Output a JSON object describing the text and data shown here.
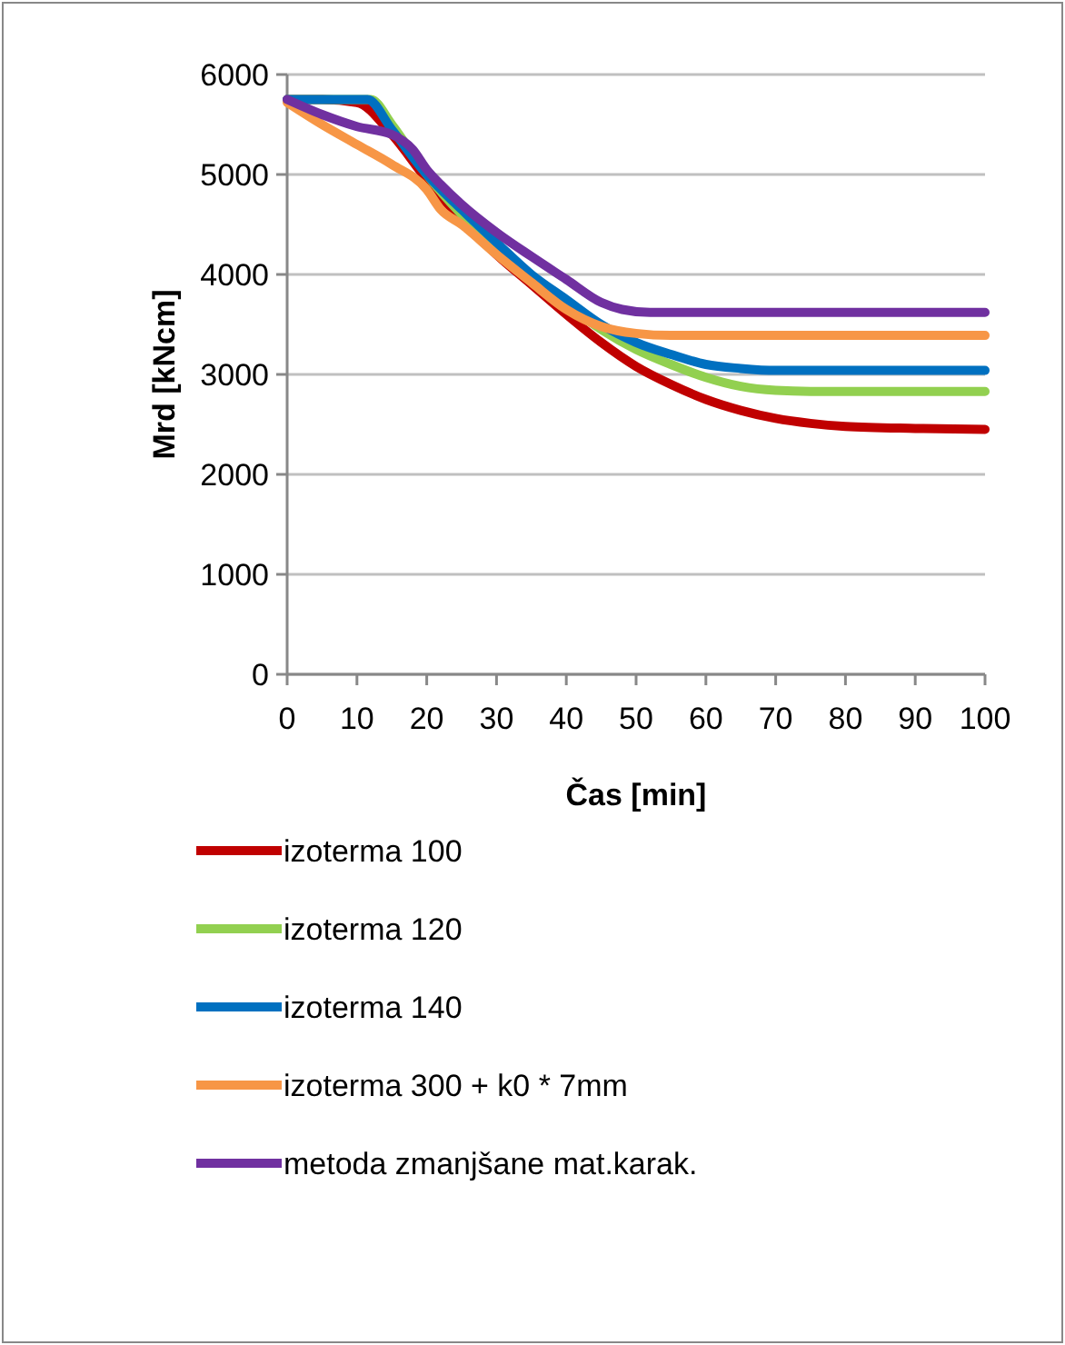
{
  "chart_data": {
    "type": "line",
    "xlabel": "Čas [min]",
    "ylabel": "Mrd [kNcm]",
    "xlim": [
      0,
      100
    ],
    "xticks": [
      0,
      10,
      20,
      30,
      40,
      50,
      60,
      70,
      80,
      90,
      100
    ],
    "ylim": [
      0,
      6000
    ],
    "yticks": [
      0,
      1000,
      2000,
      3000,
      4000,
      5000,
      6000
    ],
    "grid": "y",
    "legend": "bottom",
    "marker": "none",
    "line_style": "solid",
    "series": [
      {
        "name": "izoterma 100",
        "color": "#c00000",
        "x": [
          0,
          5,
          10,
          15,
          20,
          25,
          30,
          35,
          40,
          45,
          50,
          55,
          60,
          65,
          70,
          75,
          80,
          90,
          100
        ],
        "values": [
          5750,
          5750,
          5720,
          5400,
          4950,
          4550,
          4200,
          3900,
          3600,
          3320,
          3080,
          2900,
          2750,
          2640,
          2560,
          2510,
          2480,
          2460,
          2450
        ]
      },
      {
        "name": "izoterma 120",
        "color": "#92d050",
        "x": [
          0,
          10,
          12,
          15,
          20,
          25,
          30,
          35,
          40,
          45,
          50,
          55,
          60,
          65,
          70,
          75,
          100
        ],
        "values": [
          5750,
          5750,
          5750,
          5500,
          5000,
          4600,
          4280,
          3980,
          3700,
          3450,
          3250,
          3100,
          2970,
          2880,
          2840,
          2830,
          2830
        ]
      },
      {
        "name": "izoterma 140",
        "color": "#0070c0",
        "x": [
          0,
          11.5,
          15,
          20,
          25,
          30,
          35,
          40,
          45,
          50,
          55,
          60,
          65,
          70,
          100
        ],
        "values": [
          5750,
          5750,
          5450,
          5000,
          4650,
          4320,
          4000,
          3750,
          3500,
          3320,
          3200,
          3100,
          3060,
          3040,
          3040
        ]
      },
      {
        "name": "izoterma 300 + k0 * 7mm",
        "color": "#f79646",
        "x": [
          0,
          5,
          10,
          15,
          20,
          22,
          25,
          30,
          35,
          40,
          45,
          50,
          55,
          100
        ],
        "values": [
          5720,
          5500,
          5300,
          5100,
          4850,
          4650,
          4500,
          4200,
          3920,
          3650,
          3480,
          3410,
          3390,
          3390
        ]
      },
      {
        "name": "metoda zmanjšane mat.karak.",
        "color": "#7030a0",
        "x": [
          0,
          5,
          10,
          15,
          18,
          20,
          22,
          25,
          30,
          35,
          40,
          45,
          48,
          52,
          55,
          100
        ],
        "values": [
          5750,
          5600,
          5480,
          5400,
          5250,
          5050,
          4900,
          4700,
          4420,
          4180,
          3950,
          3720,
          3650,
          3620,
          3620,
          3620
        ]
      }
    ]
  }
}
